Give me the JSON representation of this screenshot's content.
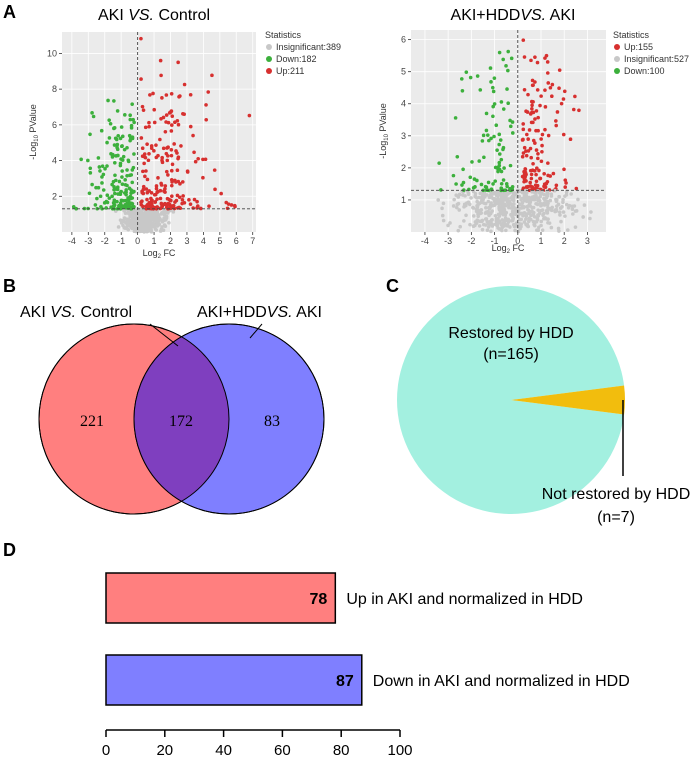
{
  "panels": [
    "A",
    "B",
    "C",
    "D"
  ],
  "chart_data": [
    {
      "type": "scatter",
      "id": "volcano1",
      "title_main": "AKI ",
      "title_italic": "VS.",
      "title_rest": " Control",
      "xlabel_base": "Log",
      "xlabel_sub": "2",
      "xlabel_rest": " FC",
      "ylabel_base": "-Log",
      "ylabel_sub": "10",
      "ylabel_rest": " PValue",
      "xlim": [
        -4.6,
        7.2
      ],
      "ylim": [
        0,
        11.2
      ],
      "xticks": [
        -4,
        -3,
        -2,
        -1,
        0,
        1,
        2,
        3,
        4,
        5,
        6,
        7
      ],
      "yticks": [
        2,
        4,
        6,
        8,
        10
      ],
      "vline_x": 0,
      "hline_y": 1.3,
      "legend_title": "Statistics",
      "legend": [
        {
          "label": "Insignificant:389",
          "color": "#c8c8c8"
        },
        {
          "label": "Down:182",
          "color": "#3cb03c"
        },
        {
          "label": "Up:211",
          "color": "#d7302f"
        }
      ],
      "series": [
        {
          "name": "Insignificant",
          "color": "#c8c8c8",
          "count": 389,
          "x_range": [
            -1.6,
            2.4
          ],
          "y_range": [
            0.0,
            1.3
          ]
        },
        {
          "name": "Down",
          "color": "#3cb03c",
          "count": 182,
          "x_range": [
            -4.2,
            -0.2
          ],
          "y_range": [
            1.3,
            7.8
          ]
        },
        {
          "name": "Up",
          "color": "#d7302f",
          "count": 211,
          "x_range": [
            0.2,
            7.0
          ],
          "y_range": [
            1.3,
            11.0
          ]
        }
      ]
    },
    {
      "type": "scatter",
      "id": "volcano2",
      "title_main": "AKI+HDD",
      "title_italic": "VS.",
      "title_rest": " AKI",
      "xlabel_base": "Log",
      "xlabel_sub": "2",
      "xlabel_rest": " FC",
      "ylabel_base": "-Log",
      "ylabel_sub": "10",
      "ylabel_rest": " PValue",
      "xlim": [
        -4.6,
        3.8
      ],
      "ylim": [
        0,
        6.3
      ],
      "xticks": [
        -4,
        -3,
        -2,
        -1,
        0,
        1,
        2,
        3
      ],
      "yticks": [
        1,
        2,
        3,
        4,
        5,
        6
      ],
      "vline_x": 0,
      "hline_y": 1.3,
      "legend_title": "Statistics",
      "legend": [
        {
          "label": "Up:155",
          "color": "#d7302f"
        },
        {
          "label": "Insignificant:527",
          "color": "#c8c8c8"
        },
        {
          "label": "Down:100",
          "color": "#3cb03c"
        }
      ],
      "series": [
        {
          "name": "Up",
          "color": "#d7302f",
          "count": 155,
          "x_range": [
            0.2,
            2.8
          ],
          "y_range": [
            1.3,
            6.2
          ]
        },
        {
          "name": "Insignificant",
          "color": "#c8c8c8",
          "count": 527,
          "x_range": [
            -4.0,
            3.6
          ],
          "y_range": [
            0.0,
            1.3
          ]
        },
        {
          "name": "Down",
          "color": "#3cb03c",
          "count": 100,
          "x_range": [
            -3.8,
            -0.2
          ],
          "y_range": [
            1.3,
            5.8
          ]
        }
      ]
    },
    {
      "type": "venn",
      "id": "venn",
      "set_a_label_main": "AKI ",
      "set_a_label_italic": "VS.",
      "set_a_label_rest": " Control",
      "set_b_label_main": "AKI+HDD",
      "set_b_label_italic": "VS.",
      "set_b_label_rest": " AKI",
      "only_a": 221,
      "both": 172,
      "only_b": 83,
      "color_a": "#ff7f7f",
      "color_b": "#7f7fff",
      "color_both": "#7f3fbf"
    },
    {
      "type": "pie",
      "id": "pie",
      "slices": [
        {
          "label": "Restored by HDD",
          "count_label": "(n=165)",
          "value": 165,
          "color": "#a3f0e0"
        },
        {
          "label": "Not restored by HDD",
          "count_label": "(n=7)",
          "value": 7,
          "color": "#f2bd0d"
        }
      ]
    },
    {
      "type": "bar",
      "id": "bars",
      "orientation": "horizontal",
      "categories": [
        "Up in AKI and normalized in HDD",
        "Down in AKI and normalized in HDD"
      ],
      "values": [
        78,
        87
      ],
      "colors": [
        "#ff7f7f",
        "#7f7fff"
      ],
      "xlim": [
        0,
        100
      ],
      "xticks": [
        0,
        20,
        40,
        60,
        80,
        100
      ]
    }
  ]
}
